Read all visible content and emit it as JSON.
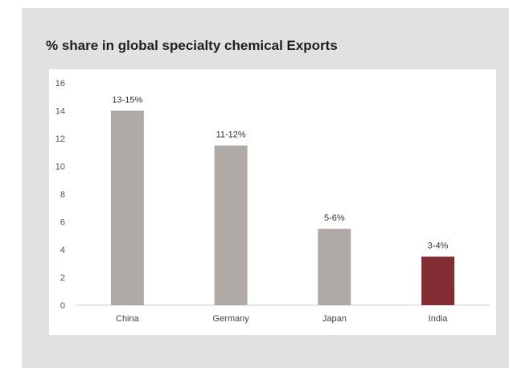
{
  "chart_data": {
    "type": "bar",
    "title": "% share in global specialty chemical Exports",
    "categories": [
      "China",
      "Germany",
      "Japan",
      "India"
    ],
    "values": [
      14,
      11.5,
      5.5,
      3.5
    ],
    "data_labels": [
      "13-15%",
      "11-12%",
      "5-6%",
      "3-4%"
    ],
    "ylim": [
      0,
      16
    ],
    "yticks": [
      0,
      2,
      4,
      6,
      8,
      10,
      12,
      14,
      16
    ],
    "grid": false,
    "colors": {
      "default": "#b0aaa7",
      "highlight": "#822c33"
    },
    "highlight_category": "India"
  }
}
